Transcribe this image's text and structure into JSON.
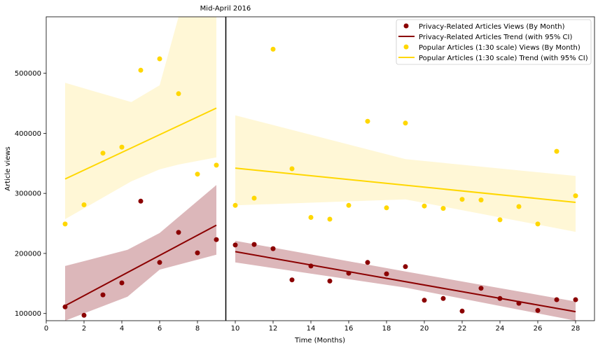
{
  "chart_data": {
    "type": "scatter",
    "title": "Mid-April 2016",
    "xlabel": "Time (Months)",
    "ylabel": "Article views",
    "xlim": [
      0,
      29
    ],
    "ylim": [
      88000,
      594000
    ],
    "x_ticks": [
      0,
      2,
      4,
      6,
      8,
      10,
      12,
      14,
      16,
      18,
      20,
      22,
      24,
      26,
      28
    ],
    "y_ticks": [
      100000,
      200000,
      300000,
      400000,
      500000
    ],
    "vline_x": 9.5,
    "grid": false,
    "legend_position": "top-right",
    "colors": {
      "privacy": "#8b0000",
      "privacy_band": "#dcb7ba",
      "popular": "#ffd700",
      "popular_band": "#fff7d6",
      "vline": "#000000"
    },
    "series": [
      {
        "name": "Privacy-Related Articles Views (By Month)",
        "kind": "points",
        "color": "#8b0000",
        "x": [
          1,
          2,
          3,
          4,
          5,
          6,
          7,
          8,
          9,
          10,
          11,
          12,
          13,
          14,
          15,
          16,
          17,
          18,
          19,
          20,
          21,
          22,
          23,
          24,
          25,
          26,
          27,
          28
        ],
        "y": [
          111000,
          97000,
          131000,
          151000,
          287000,
          185000,
          235000,
          201000,
          223000,
          214000,
          215000,
          208000,
          156000,
          179000,
          154000,
          167000,
          185000,
          166000,
          178000,
          122000,
          125000,
          104000,
          142000,
          125000,
          117000,
          105000,
          123000,
          123000
        ]
      },
      {
        "name": "Privacy-Related Articles Trend (with 95% CI)",
        "kind": "trend",
        "color": "#8b0000",
        "segments": [
          {
            "x": [
              1,
              9
            ],
            "y": [
              113000,
              247000
            ]
          },
          {
            "x": [
              10,
              28
            ],
            "y": [
              203000,
              103000
            ]
          }
        ],
        "ci": [
          {
            "x": [
              1,
              4.3,
              6,
              9
            ],
            "upper": [
              179000,
              206000,
              234000,
              314000
            ],
            "lower": [
              88000,
              128000,
              173000,
              198000
            ]
          },
          {
            "x": [
              10,
              19,
              28
            ],
            "upper": [
              221000,
              170000,
              120000
            ],
            "lower": [
              185000,
              143000,
              87000
            ]
          }
        ]
      },
      {
        "name": "Popular Articles (1:30 scale) Views (By Month)",
        "kind": "points",
        "color": "#ffd700",
        "x": [
          1,
          2,
          3,
          4,
          5,
          6,
          7,
          8,
          9,
          10,
          11,
          12,
          13,
          14,
          15,
          16,
          17,
          18,
          19,
          20,
          21,
          22,
          23,
          24,
          25,
          26,
          27,
          28
        ],
        "y": [
          249000,
          281000,
          367000,
          377000,
          505000,
          524000,
          466000,
          332000,
          347000,
          280000,
          292000,
          540000,
          341000,
          260000,
          257000,
          280000,
          420000,
          276000,
          417000,
          279000,
          275000,
          290000,
          289000,
          256000,
          278000,
          249000,
          370000,
          296000
        ]
      },
      {
        "name": "Popular Articles (1:30 scale) Trend (with 95% CI)",
        "kind": "trend",
        "color": "#ffd700",
        "segments": [
          {
            "x": [
              1,
              9
            ],
            "y": [
              324000,
              442000
            ]
          },
          {
            "x": [
              10,
              28
            ],
            "y": [
              342000,
              285000
            ]
          }
        ],
        "ci": [
          {
            "x": [
              1,
              4.5,
              6,
              7,
              9
            ],
            "upper": [
              484000,
              452000,
              480000,
              594000,
              594000
            ],
            "lower": [
              257000,
              320000,
              340000,
              348000,
              360000
            ]
          },
          {
            "x": [
              10,
              19,
              28
            ],
            "upper": [
              430000,
              357000,
              329000
            ],
            "lower": [
              280000,
              290000,
              236000
            ]
          }
        ]
      }
    ]
  }
}
